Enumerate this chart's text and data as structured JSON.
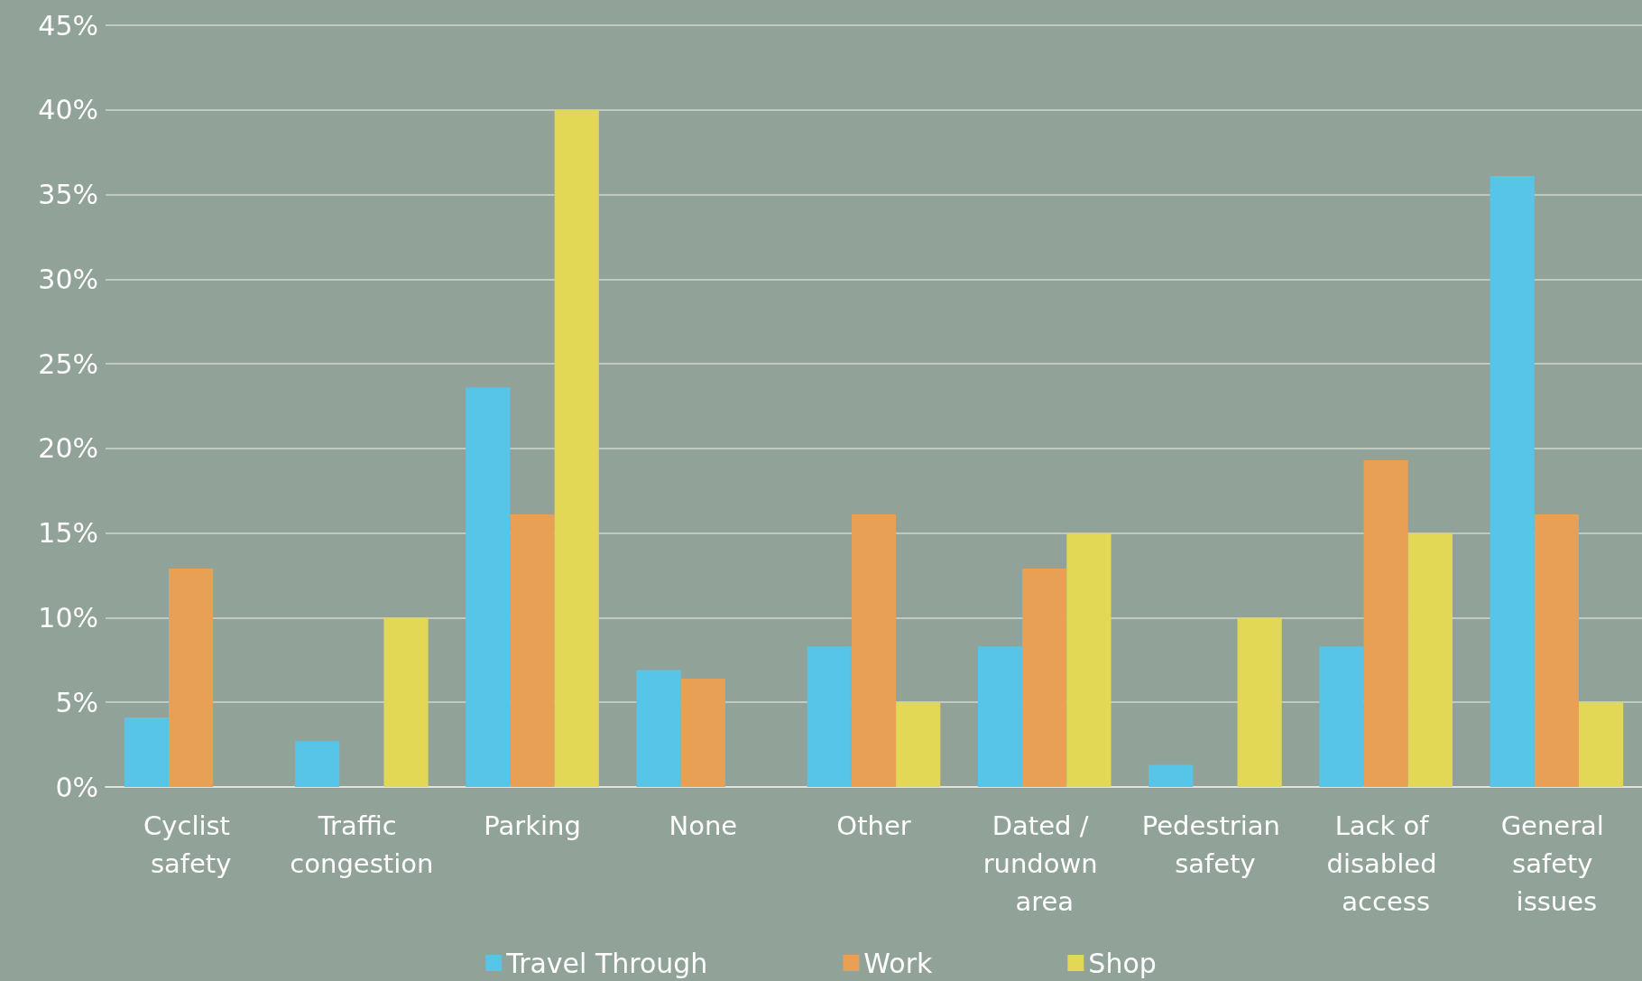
{
  "chart_data": {
    "type": "bar",
    "categories": [
      "Cyclist safety",
      "Traffic congestion",
      "Parking",
      "None",
      "Other",
      "Dated / rundown area",
      "Pedestrian safety",
      "Lack of disabled access",
      "General safety issues"
    ],
    "series": [
      {
        "name": "Travel Through",
        "color": "#56c5e8",
        "values": [
          4.1,
          2.7,
          23.6,
          6.9,
          8.3,
          8.3,
          1.3,
          8.3,
          36.1
        ]
      },
      {
        "name": "Work",
        "color": "#e8a055",
        "values": [
          12.9,
          0,
          16.1,
          6.4,
          16.1,
          12.9,
          0,
          19.3,
          16.1
        ]
      },
      {
        "name": "Shop",
        "color": "#e3d855",
        "values": [
          0,
          10,
          40,
          0,
          5,
          15,
          10,
          15,
          5
        ]
      }
    ],
    "ylim": [
      0,
      45
    ],
    "yticks": [
      {
        "value": 0,
        "label": "0%"
      },
      {
        "value": 5,
        "label": "5%"
      },
      {
        "value": 10,
        "label": "10%"
      },
      {
        "value": 15,
        "label": "15%"
      },
      {
        "value": 20,
        "label": "20%"
      },
      {
        "value": 25,
        "label": "25%"
      },
      {
        "value": 30,
        "label": "30%"
      },
      {
        "value": 35,
        "label": "35%"
      },
      {
        "value": 40,
        "label": "40%"
      },
      {
        "value": 45,
        "label": "45%"
      }
    ],
    "grid": "y",
    "legend": "bottom"
  }
}
